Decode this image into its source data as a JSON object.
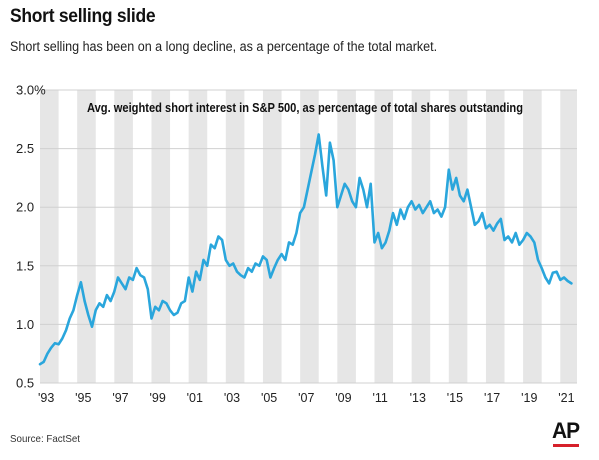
{
  "header": {
    "title": "Short selling slide",
    "subtitle": "Short selling has been on a long decline, as a percentage of the total market."
  },
  "footer": {
    "source": "Source: FactSet",
    "logo_text": "AP",
    "logo_accent": "#d6202a"
  },
  "colors": {
    "line": "#2aa6dc",
    "band": "#e6e6e6",
    "grid": "#d0d0d0"
  },
  "chart_data": {
    "type": "line",
    "title": "Avg. weighted short interest in S&P 500, as percentage of total shares outstanding",
    "xlabel": "",
    "ylabel": "",
    "ylim": [
      0.5,
      3.0
    ],
    "xlim": [
      1993.0,
      2021.9
    ],
    "y_ticks": [
      {
        "value": 0.5,
        "label": "0.5"
      },
      {
        "value": 1.0,
        "label": "1.0"
      },
      {
        "value": 1.5,
        "label": "1.5"
      },
      {
        "value": 2.0,
        "label": "2.0"
      },
      {
        "value": 2.5,
        "label": "2.5"
      },
      {
        "value": 3.0,
        "label": "3.0%"
      }
    ],
    "x_ticks": [
      {
        "value": 1993,
        "label": "'93"
      },
      {
        "value": 1995,
        "label": "'95"
      },
      {
        "value": 1997,
        "label": "'97"
      },
      {
        "value": 1999,
        "label": "'99"
      },
      {
        "value": 2001,
        "label": "'01"
      },
      {
        "value": 2003,
        "label": "'03"
      },
      {
        "value": 2005,
        "label": "'05"
      },
      {
        "value": 2007,
        "label": "'07"
      },
      {
        "value": 2009,
        "label": "'09"
      },
      {
        "value": 2011,
        "label": "'11"
      },
      {
        "value": 2013,
        "label": "'13"
      },
      {
        "value": 2015,
        "label": "'15"
      },
      {
        "value": 2017,
        "label": "'17"
      },
      {
        "value": 2019,
        "label": "'19"
      },
      {
        "value": 2021,
        "label": "'21"
      }
    ],
    "alternating_year_bands": true,
    "grid": true,
    "series": [
      {
        "x": [
          1993.0,
          1993.2,
          1993.4,
          1993.6,
          1993.8,
          1994.0,
          1994.2,
          1994.4,
          1994.6,
          1994.8,
          1995.0,
          1995.2,
          1995.4,
          1995.6,
          1995.8,
          1996.0,
          1996.2,
          1996.4,
          1996.6,
          1996.8,
          1997.0,
          1997.2,
          1997.4,
          1997.6,
          1997.8,
          1998.0,
          1998.2,
          1998.4,
          1998.6,
          1998.8,
          1999.0,
          1999.2,
          1999.4,
          1999.6,
          1999.8,
          2000.0,
          2000.2,
          2000.4,
          2000.6,
          2000.8,
          2001.0,
          2001.2,
          2001.4,
          2001.6,
          2001.8,
          2002.0,
          2002.2,
          2002.4,
          2002.6,
          2002.8,
          2003.0,
          2003.2,
          2003.4,
          2003.6,
          2003.8,
          2004.0,
          2004.2,
          2004.4,
          2004.6,
          2004.8,
          2005.0,
          2005.2,
          2005.4,
          2005.6,
          2005.8,
          2006.0,
          2006.2,
          2006.4,
          2006.6,
          2006.8,
          2007.0,
          2007.2,
          2007.4,
          2007.6,
          2007.8,
          2008.0,
          2008.2,
          2008.4,
          2008.6,
          2008.8,
          2009.0,
          2009.2,
          2009.4,
          2009.6,
          2009.8,
          2010.0,
          2010.2,
          2010.4,
          2010.6,
          2010.8,
          2011.0,
          2011.2,
          2011.4,
          2011.6,
          2011.8,
          2012.0,
          2012.2,
          2012.4,
          2012.6,
          2012.8,
          2013.0,
          2013.2,
          2013.4,
          2013.6,
          2013.8,
          2014.0,
          2014.2,
          2014.4,
          2014.6,
          2014.8,
          2015.0,
          2015.2,
          2015.4,
          2015.6,
          2015.8,
          2016.0,
          2016.2,
          2016.4,
          2016.6,
          2016.8,
          2017.0,
          2017.2,
          2017.4,
          2017.6,
          2017.8,
          2018.0,
          2018.2,
          2018.4,
          2018.6,
          2018.8,
          2019.0,
          2019.2,
          2019.4,
          2019.6,
          2019.8,
          2020.0,
          2020.2,
          2020.4,
          2020.6,
          2020.8,
          2021.0,
          2021.2,
          2021.4,
          2021.6
        ],
        "y": [
          0.66,
          0.68,
          0.75,
          0.8,
          0.84,
          0.83,
          0.88,
          0.95,
          1.05,
          1.12,
          1.25,
          1.36,
          1.2,
          1.08,
          0.98,
          1.12,
          1.18,
          1.15,
          1.25,
          1.2,
          1.28,
          1.4,
          1.35,
          1.3,
          1.4,
          1.38,
          1.48,
          1.42,
          1.4,
          1.3,
          1.05,
          1.15,
          1.12,
          1.2,
          1.18,
          1.12,
          1.08,
          1.1,
          1.18,
          1.2,
          1.4,
          1.28,
          1.45,
          1.38,
          1.55,
          1.5,
          1.68,
          1.65,
          1.75,
          1.72,
          1.55,
          1.5,
          1.52,
          1.45,
          1.42,
          1.4,
          1.48,
          1.45,
          1.52,
          1.5,
          1.58,
          1.55,
          1.4,
          1.48,
          1.55,
          1.6,
          1.55,
          1.7,
          1.68,
          1.78,
          1.95,
          2.0,
          2.15,
          2.3,
          2.45,
          2.62,
          2.35,
          2.1,
          2.55,
          2.4,
          2.0,
          2.1,
          2.2,
          2.15,
          2.05,
          2.0,
          2.25,
          2.15,
          2.0,
          2.2,
          1.7,
          1.78,
          1.65,
          1.7,
          1.8,
          1.95,
          1.85,
          1.98,
          1.9,
          2.0,
          2.05,
          1.98,
          2.02,
          1.95,
          2.0,
          2.05,
          1.95,
          1.98,
          1.92,
          2.0,
          2.32,
          2.15,
          2.25,
          2.1,
          2.05,
          2.15,
          2.0,
          1.85,
          1.88,
          1.95,
          1.82,
          1.85,
          1.8,
          1.86,
          1.9,
          1.72,
          1.75,
          1.7,
          1.78,
          1.68,
          1.72,
          1.78,
          1.75,
          1.7,
          1.55,
          1.48,
          1.4,
          1.35,
          1.44,
          1.45,
          1.38,
          1.4,
          1.37,
          1.35
        ]
      }
    ]
  }
}
